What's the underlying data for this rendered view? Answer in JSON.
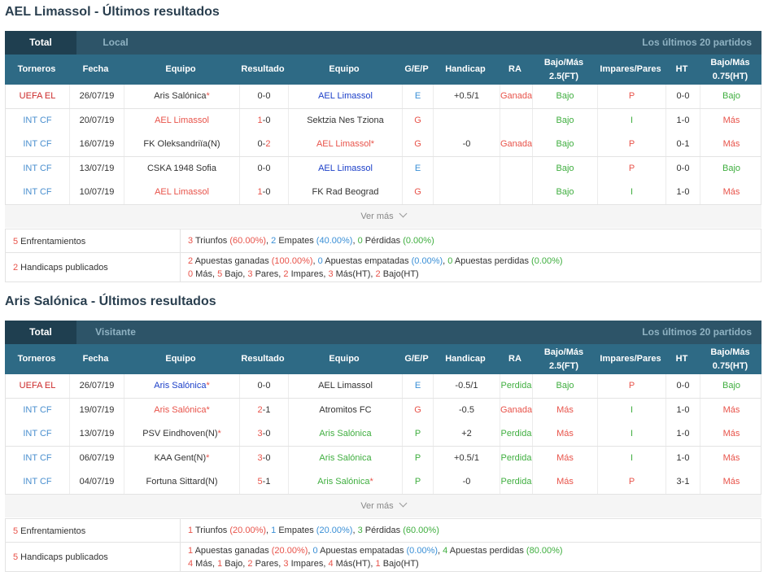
{
  "sections": [
    {
      "title": "AEL Limassol - Últimos resultados",
      "tabs": {
        "active": "Total",
        "inactive": "Local",
        "right": "Los últimos 20 partidos"
      },
      "headers": [
        "Torneros",
        "Fecha",
        "Equipo",
        "Resultado",
        "Equipo",
        "G/E/P",
        "Handicap",
        "RA",
        "Bajo/Más 2.5(FT)",
        "Impares/Pares",
        "HT",
        "Bajo/Más 0.75(HT)"
      ],
      "rows": [
        {
          "torneo": "UEFA EL",
          "fecha": "26/07/19",
          "home": "Aris Salónica",
          "home_star": "*",
          "home_hl": false,
          "score_home": "0",
          "score_sep": "-",
          "score_away": "0",
          "away": "AEL Limassol",
          "away_star": "",
          "away_hl": true,
          "gep": "E",
          "handicap": "+0.5/1",
          "ra": "Ganada",
          "ou": "Bajo",
          "op": "P",
          "ht": "0-0",
          "ht_ou": "Bajo"
        },
        {
          "torneo": "INT CF",
          "fecha": "20/07/19",
          "home": "AEL Limassol",
          "home_star": "",
          "home_hl": true,
          "score_home": "1",
          "score_sep": "-",
          "score_away": "0",
          "away": "Sektzia Nes Tziona",
          "away_star": "",
          "away_hl": false,
          "gep": "G",
          "handicap": "",
          "ra": "",
          "ou": "Bajo",
          "op": "I",
          "ht": "1-0",
          "ht_ou": "Más"
        },
        {
          "torneo": "INT CF",
          "fecha": "16/07/19",
          "home": "FK Oleksandriïa(N)",
          "home_star": "",
          "home_hl": false,
          "score_home": "0",
          "score_sep": "-",
          "score_away": "2",
          "away": "AEL Limassol",
          "away_star": "*",
          "away_hl": true,
          "gep": "G",
          "handicap": "-0",
          "ra": "Ganada",
          "ou": "Bajo",
          "op": "P",
          "ht": "0-1",
          "ht_ou": "Más"
        },
        {
          "torneo": "INT CF",
          "fecha": "13/07/19",
          "home": "CSKA 1948 Sofia",
          "home_star": "",
          "home_hl": false,
          "score_home": "0",
          "score_sep": "-",
          "score_away": "0",
          "away": "AEL Limassol",
          "away_star": "",
          "away_hl": true,
          "gep": "E",
          "handicap": "",
          "ra": "",
          "ou": "Bajo",
          "op": "P",
          "ht": "0-0",
          "ht_ou": "Bajo"
        },
        {
          "torneo": "INT CF",
          "fecha": "10/07/19",
          "home": "AEL Limassol",
          "home_star": "",
          "home_hl": true,
          "score_home": "1",
          "score_sep": "-",
          "score_away": "0",
          "away": "FK Rad Beograd",
          "away_star": "",
          "away_hl": false,
          "gep": "G",
          "handicap": "",
          "ra": "",
          "ou": "Bajo",
          "op": "I",
          "ht": "1-0",
          "ht_ou": "Más"
        }
      ],
      "ver_mas": "Ver más",
      "summary": {
        "enf_num": "5",
        "enf_label": " Enfrentamientos",
        "wins": "3",
        "wins_label": " Triunfos ",
        "wins_pct": "(60.00%)",
        "draws": "2",
        "draws_label": " Empates ",
        "draws_pct": "(40.00%)",
        "losses": "0",
        "losses_label": " Pérdidas ",
        "losses_pct": "(0.00%)",
        "hc_num": "2",
        "hc_label": " Handicaps publicados",
        "ag": "2",
        "ag_label": " Apuestas ganadas ",
        "ag_pct": "(100.00%)",
        "ae": "0",
        "ae_label": " Apuestas empatadas ",
        "ae_pct": "(0.00%)",
        "ap": "0",
        "ap_label": " Apuestas perdidas ",
        "ap_pct": "(0.00%)",
        "mas": "0",
        "mas_label": " Más, ",
        "bajo": "5",
        "bajo_label": " Bajo, ",
        "pares": "3",
        "pares_label": " Pares, ",
        "impares": "2",
        "impares_label": " Impares, ",
        "mas_ht": "3",
        "mas_ht_label": " Más(HT), ",
        "bajo_ht": "2",
        "bajo_ht_label": " Bajo(HT)"
      }
    },
    {
      "title": "Aris Salónica - Últimos resultados",
      "tabs": {
        "active": "Total",
        "inactive": "Visitante",
        "right": "Los últimos 20 partidos"
      },
      "headers": [
        "Torneros",
        "Fecha",
        "Equipo",
        "Resultado",
        "Equipo",
        "G/E/P",
        "Handicap",
        "RA",
        "Bajo/Más 2.5(FT)",
        "Impares/Pares",
        "HT",
        "Bajo/Más 0.75(HT)"
      ],
      "rows": [
        {
          "torneo": "UEFA EL",
          "fecha": "26/07/19",
          "home": "Aris Salónica",
          "home_star": "*",
          "home_hl": true,
          "score_home": "0",
          "score_sep": "-",
          "score_away": "0",
          "away": "AEL Limassol",
          "away_star": "",
          "away_hl": false,
          "gep": "E",
          "handicap": "-0.5/1",
          "ra": "Perdida",
          "ou": "Bajo",
          "op": "P",
          "ht": "0-0",
          "ht_ou": "Bajo"
        },
        {
          "torneo": "INT CF",
          "fecha": "19/07/19",
          "home": "Aris Salónica",
          "home_star": "*",
          "home_hl": true,
          "score_home": "2",
          "score_sep": "-",
          "score_away": "1",
          "away": "Atromitos FC",
          "away_star": "",
          "away_hl": false,
          "gep": "G",
          "handicap": "-0.5",
          "ra": "Ganada",
          "ou": "Más",
          "op": "I",
          "ht": "1-0",
          "ht_ou": "Más"
        },
        {
          "torneo": "INT CF",
          "fecha": "13/07/19",
          "home": "PSV Eindhoven(N)",
          "home_star": "*",
          "home_hl": false,
          "score_home": "3",
          "score_sep": "-",
          "score_away": "0",
          "away": "Aris Salónica",
          "away_star": "",
          "away_hl": true,
          "gep": "P",
          "handicap": "+2",
          "ra": "Perdida",
          "ou": "Más",
          "op": "I",
          "ht": "1-0",
          "ht_ou": "Más"
        },
        {
          "torneo": "INT CF",
          "fecha": "06/07/19",
          "home": "KAA Gent(N)",
          "home_star": "*",
          "home_hl": false,
          "score_home": "3",
          "score_sep": "-",
          "score_away": "0",
          "away": "Aris Salónica",
          "away_star": "",
          "away_hl": true,
          "gep": "P",
          "handicap": "+0.5/1",
          "ra": "Perdida",
          "ou": "Más",
          "op": "I",
          "ht": "1-0",
          "ht_ou": "Más"
        },
        {
          "torneo": "INT CF",
          "fecha": "04/07/19",
          "home": "Fortuna Sittard(N)",
          "home_star": "",
          "home_hl": false,
          "score_home": "5",
          "score_sep": "-",
          "score_away": "1",
          "away": "Aris Salónica",
          "away_star": "*",
          "away_hl": true,
          "gep": "P",
          "handicap": "-0",
          "ra": "Perdida",
          "ou": "Más",
          "op": "P",
          "ht": "3-1",
          "ht_ou": "Más"
        }
      ],
      "ver_mas": "Ver más",
      "summary": {
        "enf_num": "5",
        "enf_label": " Enfrentamientos",
        "wins": "1",
        "wins_label": " Triunfos ",
        "wins_pct": "(20.00%)",
        "draws": "1",
        "draws_label": " Empates ",
        "draws_pct": "(20.00%)",
        "losses": "3",
        "losses_label": " Pérdidas ",
        "losses_pct": "(60.00%)",
        "hc_num": "5",
        "hc_label": " Handicaps publicados",
        "ag": "1",
        "ag_label": " Apuestas ganadas ",
        "ag_pct": "(20.00%)",
        "ae": "0",
        "ae_label": " Apuestas empatadas ",
        "ae_pct": "(0.00%)",
        "ap": "4",
        "ap_label": " Apuestas perdidas ",
        "ap_pct": "(80.00%)",
        "mas": "4",
        "mas_label": " Más, ",
        "bajo": "1",
        "bajo_label": " Bajo, ",
        "pares": "2",
        "pares_label": " Pares, ",
        "impares": "3",
        "impares_label": " Impares, ",
        "mas_ht": "4",
        "mas_ht_label": " Más(HT), ",
        "bajo_ht": "1",
        "bajo_ht_label": " Bajo(HT)"
      }
    }
  ],
  "colors": {
    "win": "#e8534a",
    "draw": "#3a8fd6",
    "loss": "#3fae3f",
    "team_highlight": "#1a3ec8",
    "bajo": "#3fae3f",
    "mas": "#e8534a",
    "header_bg": "#2e6a85",
    "tabbar_bg": "#2d5468"
  }
}
